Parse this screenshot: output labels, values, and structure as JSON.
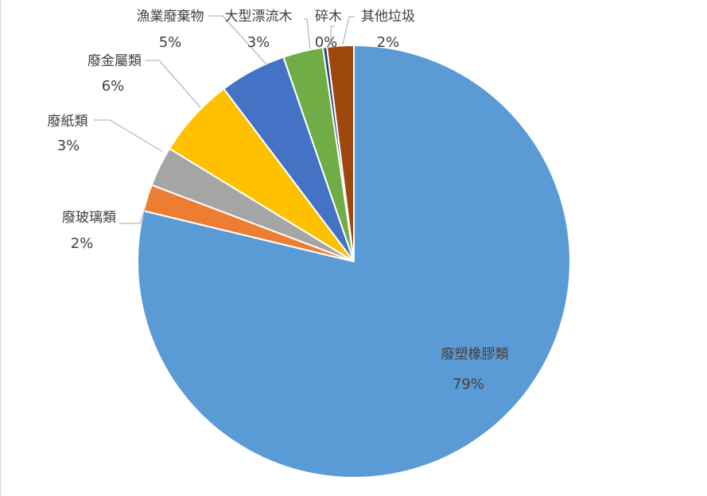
{
  "chart_data": {
    "type": "pie",
    "title": "",
    "start_direction": "top",
    "clockwise": true,
    "slices": [
      {
        "name": "廢塑橡膠類",
        "value": 79,
        "label": "79%",
        "color": "#5b9bd5"
      },
      {
        "name": "廢玻璃類",
        "value": 2,
        "label": "2%",
        "color": "#ed7d31"
      },
      {
        "name": "廢紙類",
        "value": 3,
        "label": "3%",
        "color": "#a5a5a5"
      },
      {
        "name": "廢金屬類",
        "value": 6,
        "label": "6%",
        "color": "#ffc000"
      },
      {
        "name": "漁業廢棄物",
        "value": 5,
        "label": "5%",
        "color": "#4472c4"
      },
      {
        "name": "大型漂流木",
        "value": 3,
        "label": "3%",
        "color": "#70ad47"
      },
      {
        "name": "碎木",
        "value": 0.3,
        "label": "0%",
        "color": "#264478"
      },
      {
        "name": "其他垃圾",
        "value": 2,
        "label": "2%",
        "color": "#9e480e"
      }
    ],
    "legend": "none",
    "labels": "outside with leader lines"
  }
}
